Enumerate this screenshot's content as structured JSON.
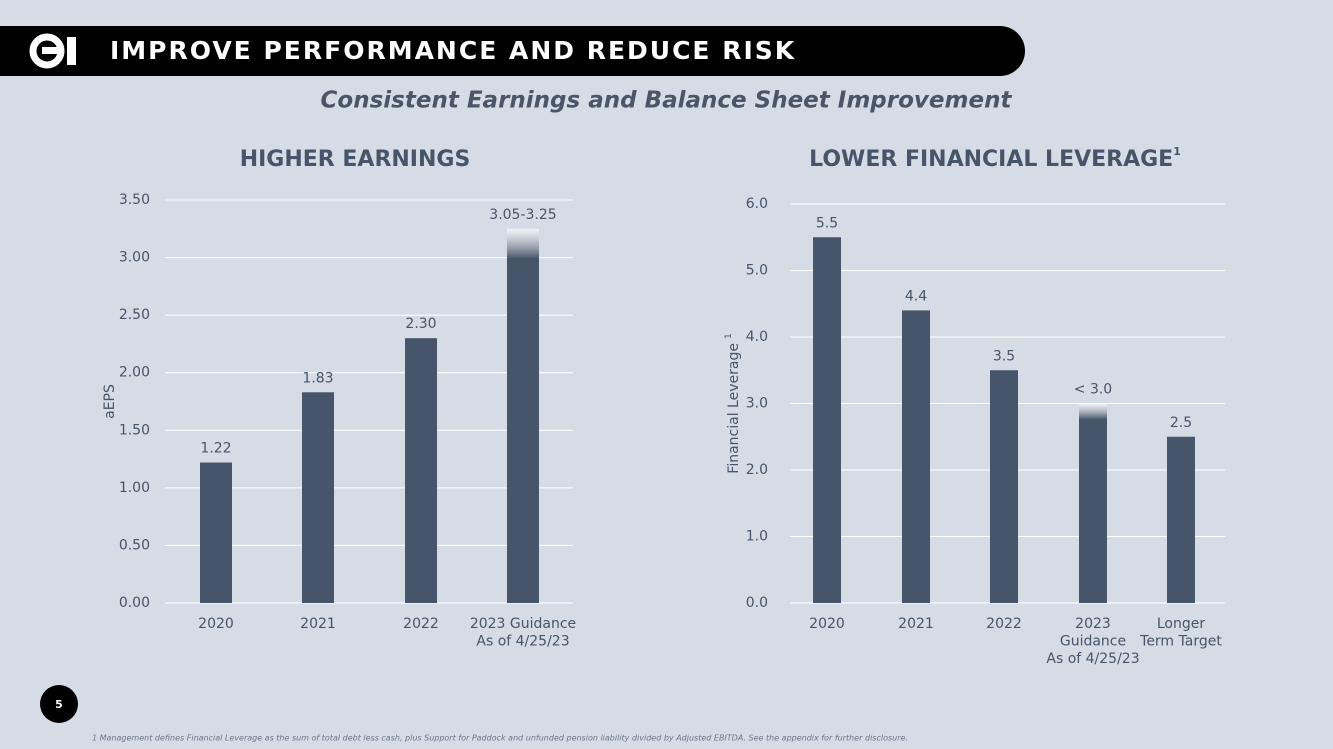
{
  "header": {
    "title": "IMPROVE PERFORMANCE AND REDUCE RISK",
    "subtitle": "Consistent Earnings and Balance Sheet Improvement"
  },
  "page_number": "5",
  "footnote": "1  Management defines Financial Leverage as the sum of total debt less cash, plus Support for Paddock and unfunded pension liability divided by Adjusted EBITDA.  See the appendix for further disclosure.",
  "chart_data": [
    {
      "type": "bar",
      "title": "HIGHER EARNINGS",
      "y_label": "aEPS",
      "categories": [
        "2020",
        "2021",
        "2022",
        "2023 Guidance\nAs of 4/25/23"
      ],
      "values": [
        1.22,
        1.83,
        2.3,
        3.25
      ],
      "value_labels": [
        "1.22",
        "1.83",
        "2.30",
        "3.05-3.25"
      ],
      "color": "#465569",
      "grid": true,
      "ylim": [
        0,
        3.5
      ],
      "yticks": [
        {
          "value": 0,
          "label": "0.00"
        },
        {
          "value": 0.5,
          "label": "0.50"
        },
        {
          "value": 1,
          "label": "1.00"
        },
        {
          "value": 1.5,
          "label": "1.50"
        },
        {
          "value": 2,
          "label": "2.00"
        },
        {
          "value": 2.5,
          "label": "2.50"
        },
        {
          "value": 3,
          "label": "3.00"
        },
        {
          "value": 3.5,
          "label": "3.50"
        }
      ]
    },
    {
      "type": "bar",
      "title": "LOWER FINANCIAL LEVERAGE",
      "title_marker": "1",
      "y_label": "Financial Leverage",
      "y_label_marker": "1",
      "categories": [
        "2020",
        "2021",
        "2022",
        "2023\nGuidance\nAs of 4/25/23",
        "Longer\nTerm Target"
      ],
      "values": [
        5.5,
        4.4,
        3.5,
        3.0,
        2.5
      ],
      "value_labels": [
        "5.5",
        "4.4",
        "3.5",
        "< 3.0",
        "2.5"
      ],
      "color": "#465569",
      "grid": true,
      "ylim": [
        0,
        6
      ],
      "yticks": [
        {
          "value": 0,
          "label": "0.0"
        },
        {
          "value": 1,
          "label": "1.0"
        },
        {
          "value": 2,
          "label": "2.0"
        },
        {
          "value": 3,
          "label": "3.0"
        },
        {
          "value": 4,
          "label": "4.0"
        },
        {
          "value": 5,
          "label": "5.0"
        },
        {
          "value": 6,
          "label": "6.0"
        }
      ]
    }
  ]
}
